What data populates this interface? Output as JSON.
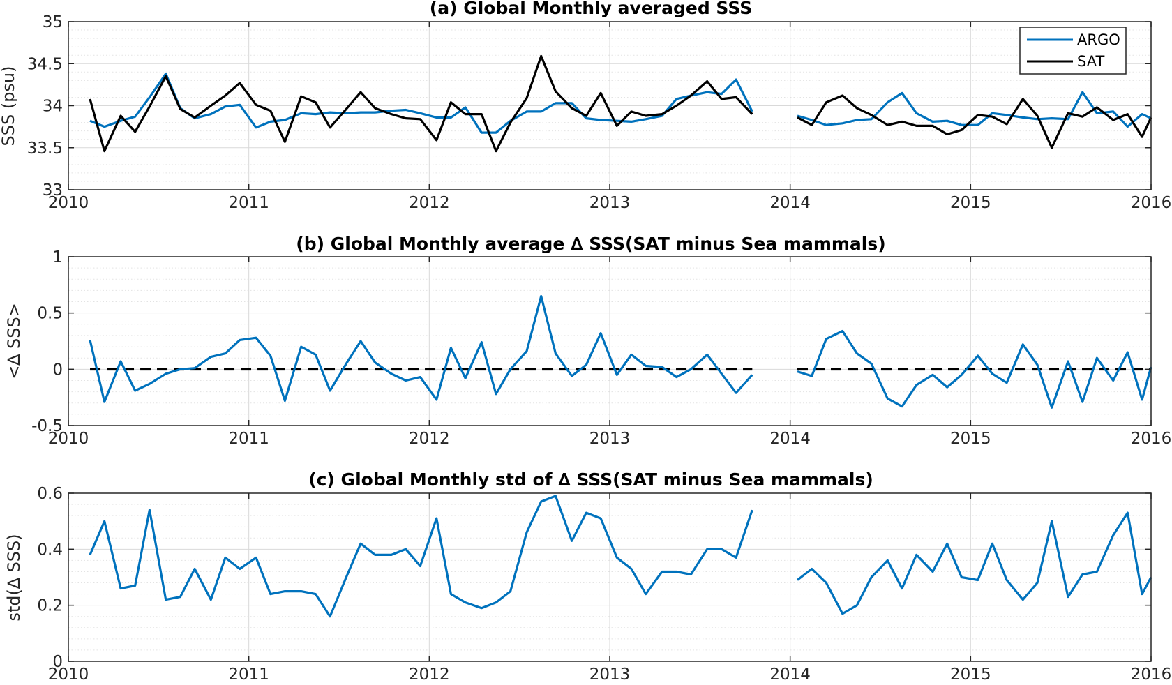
{
  "colors": {
    "argo": "#0072BD",
    "sat": "#000000",
    "grid": "#d9d9d9",
    "axis": "#262626"
  },
  "chart_data": [
    {
      "type": "line",
      "title": "(a) Global Monthly averaged SSS",
      "xlabel": "",
      "ylabel": "SSS (psu)",
      "xlim": [
        2010,
        2016
      ],
      "ylim": [
        33,
        35
      ],
      "xticks": [
        2010,
        2011,
        2012,
        2013,
        2014,
        2015,
        2016
      ],
      "yticks": [
        33,
        33.5,
        34,
        34.5,
        35
      ],
      "ytick_labels": [
        "33",
        "33.5",
        "34",
        "34.5",
        "35"
      ],
      "grid": true,
      "minor_grid": true,
      "legend": "top-right",
      "series": [
        {
          "name": "ARGO",
          "color": "#0072BD",
          "x": [
            2010.12,
            2010.2,
            2010.29,
            2010.37,
            2010.45,
            2010.54,
            2010.62,
            2010.7,
            2010.79,
            2010.87,
            2010.95,
            2011.04,
            2011.12,
            2011.2,
            2011.29,
            2011.37,
            2011.45,
            2011.54,
            2011.62,
            2011.7,
            2011.79,
            2011.87,
            2011.95,
            2012.04,
            2012.12,
            2012.2,
            2012.29,
            2012.37,
            2012.45,
            2012.54,
            2012.62,
            2012.7,
            2012.79,
            2012.87,
            2012.95,
            2013.04,
            2013.12,
            2013.2,
            2013.29,
            2013.37,
            2013.45,
            2013.54,
            2013.62,
            2013.7,
            2013.79,
            null,
            2014.04,
            2014.12,
            2014.2,
            2014.29,
            2014.37,
            2014.45,
            2014.54,
            2014.62,
            2014.7,
            2014.79,
            2014.87,
            2014.95,
            2015.04,
            2015.12,
            2015.2,
            2015.29,
            2015.37,
            2015.45,
            2015.54,
            2015.62,
            2015.7,
            2015.79,
            2015.87,
            2015.95,
            2016.0
          ],
          "y": [
            33.82,
            33.75,
            33.82,
            33.87,
            34.1,
            34.38,
            33.97,
            33.85,
            33.9,
            33.99,
            34.01,
            33.74,
            33.81,
            33.83,
            33.91,
            33.9,
            33.92,
            33.91,
            33.92,
            33.92,
            33.94,
            33.95,
            33.91,
            33.86,
            33.86,
            33.98,
            33.68,
            33.68,
            33.82,
            33.93,
            33.93,
            34.03,
            34.03,
            33.85,
            33.83,
            33.82,
            33.81,
            33.84,
            33.88,
            34.08,
            34.12,
            34.16,
            34.14,
            34.31,
            33.93,
            null,
            33.88,
            33.83,
            33.77,
            33.79,
            33.83,
            33.84,
            34.04,
            34.15,
            33.91,
            33.81,
            33.82,
            33.77,
            33.77,
            33.91,
            33.89,
            33.86,
            33.84,
            33.85,
            33.84,
            34.16,
            33.91,
            33.93,
            33.75,
            33.9,
            33.85
          ]
        },
        {
          "name": "SAT",
          "color": "#000000",
          "x": [
            2010.12,
            2010.2,
            2010.29,
            2010.37,
            2010.45,
            2010.54,
            2010.62,
            2010.7,
            2010.79,
            2010.87,
            2010.95,
            2011.04,
            2011.12,
            2011.2,
            2011.29,
            2011.37,
            2011.45,
            2011.54,
            2011.62,
            2011.7,
            2011.79,
            2011.87,
            2011.95,
            2012.04,
            2012.12,
            2012.2,
            2012.29,
            2012.37,
            2012.45,
            2012.54,
            2012.62,
            2012.7,
            2012.79,
            2012.87,
            2012.95,
            2013.04,
            2013.12,
            2013.2,
            2013.29,
            2013.37,
            2013.45,
            2013.54,
            2013.62,
            2013.7,
            2013.79,
            null,
            2014.04,
            2014.12,
            2014.2,
            2014.29,
            2014.37,
            2014.45,
            2014.54,
            2014.62,
            2014.7,
            2014.79,
            2014.87,
            2014.95,
            2015.04,
            2015.12,
            2015.2,
            2015.29,
            2015.37,
            2015.45,
            2015.54,
            2015.62,
            2015.7,
            2015.79,
            2015.87,
            2015.95,
            2016.0
          ],
          "y": [
            34.08,
            33.46,
            33.88,
            33.69,
            33.99,
            34.35,
            33.96,
            33.86,
            34.0,
            34.12,
            34.27,
            34.01,
            33.94,
            33.57,
            34.11,
            34.04,
            33.74,
            33.96,
            34.16,
            33.97,
            33.9,
            33.85,
            33.84,
            33.59,
            34.04,
            33.9,
            33.9,
            33.46,
            33.8,
            34.09,
            34.59,
            34.17,
            33.97,
            33.88,
            34.15,
            33.76,
            33.93,
            33.88,
            33.9,
            34.0,
            34.12,
            34.29,
            34.08,
            34.1,
            33.9,
            null,
            33.86,
            33.77,
            34.04,
            34.12,
            33.97,
            33.89,
            33.77,
            33.81,
            33.76,
            33.76,
            33.66,
            33.71,
            33.89,
            33.87,
            33.78,
            34.08,
            33.88,
            33.5,
            33.91,
            33.87,
            33.98,
            33.83,
            33.9,
            33.63,
            33.86
          ]
        }
      ]
    },
    {
      "type": "line",
      "title": "(b) Global Monthly average ∆ SSS(SAT minus Sea mammals)",
      "xlabel": "",
      "ylabel": "<∆ SSS>",
      "xlim": [
        2010,
        2016
      ],
      "ylim": [
        -0.5,
        1
      ],
      "xticks": [
        2010,
        2011,
        2012,
        2013,
        2014,
        2015,
        2016
      ],
      "yticks": [
        -0.5,
        0,
        0.5,
        1
      ],
      "ytick_labels": [
        "-0.5",
        "0",
        "0.5",
        "1"
      ],
      "grid": true,
      "minor_grid": true,
      "reference_line": {
        "y": 0,
        "style": "dashed",
        "segments": [
          [
            2010.12,
            2013.79
          ],
          [
            2014.04,
            2016.0
          ]
        ]
      },
      "series": [
        {
          "color": "#0072BD",
          "x": [
            2010.12,
            2010.2,
            2010.29,
            2010.37,
            2010.45,
            2010.54,
            2010.62,
            2010.7,
            2010.79,
            2010.87,
            2010.95,
            2011.04,
            2011.12,
            2011.2,
            2011.29,
            2011.37,
            2011.45,
            2011.54,
            2011.62,
            2011.7,
            2011.79,
            2011.87,
            2011.95,
            2012.04,
            2012.12,
            2012.2,
            2012.29,
            2012.37,
            2012.45,
            2012.54,
            2012.62,
            2012.7,
            2012.79,
            2012.87,
            2012.95,
            2013.04,
            2013.12,
            2013.2,
            2013.29,
            2013.37,
            2013.45,
            2013.54,
            2013.62,
            2013.7,
            2013.79,
            null,
            2014.04,
            2014.12,
            2014.2,
            2014.29,
            2014.37,
            2014.45,
            2014.54,
            2014.62,
            2014.7,
            2014.79,
            2014.87,
            2014.95,
            2015.04,
            2015.12,
            2015.2,
            2015.29,
            2015.37,
            2015.45,
            2015.54,
            2015.62,
            2015.7,
            2015.79,
            2015.87,
            2015.95,
            2016.0
          ],
          "y": [
            0.26,
            -0.29,
            0.07,
            -0.19,
            -0.13,
            -0.04,
            0.0,
            0.01,
            0.11,
            0.14,
            0.26,
            0.28,
            0.12,
            -0.28,
            0.2,
            0.13,
            -0.19,
            0.05,
            0.25,
            0.06,
            -0.04,
            -0.1,
            -0.07,
            -0.27,
            0.19,
            -0.08,
            0.24,
            -0.22,
            0.0,
            0.16,
            0.65,
            0.14,
            -0.06,
            0.04,
            0.32,
            -0.05,
            0.13,
            0.03,
            0.02,
            -0.07,
            0.0,
            0.13,
            -0.04,
            -0.21,
            -0.05,
            null,
            -0.02,
            -0.06,
            0.27,
            0.34,
            0.14,
            0.05,
            -0.26,
            -0.33,
            -0.14,
            -0.05,
            -0.16,
            -0.05,
            0.12,
            -0.04,
            -0.12,
            0.22,
            0.04,
            -0.34,
            0.07,
            -0.29,
            0.1,
            -0.1,
            0.15,
            -0.27,
            0.02
          ]
        }
      ]
    },
    {
      "type": "line",
      "title": "(c) Global Monthly std of ∆ SSS(SAT minus Sea mammals)",
      "xlabel": "",
      "ylabel": "std(∆ SSS)",
      "xlim": [
        2010,
        2016
      ],
      "ylim": [
        0,
        0.6
      ],
      "xticks": [
        2010,
        2011,
        2012,
        2013,
        2014,
        2015,
        2016
      ],
      "yticks": [
        0,
        0.2,
        0.4,
        0.6
      ],
      "ytick_labels": [
        "0",
        "0.2",
        "0.4",
        "0.6"
      ],
      "grid": true,
      "minor_grid": true,
      "series": [
        {
          "color": "#0072BD",
          "x": [
            2010.12,
            2010.2,
            2010.29,
            2010.37,
            2010.45,
            2010.54,
            2010.62,
            2010.7,
            2010.79,
            2010.87,
            2010.95,
            2011.04,
            2011.12,
            2011.2,
            2011.29,
            2011.37,
            2011.45,
            2011.54,
            2011.62,
            2011.7,
            2011.79,
            2011.87,
            2011.95,
            2012.04,
            2012.12,
            2012.2,
            2012.29,
            2012.37,
            2012.45,
            2012.54,
            2012.62,
            2012.7,
            2012.79,
            2012.87,
            2012.95,
            2013.04,
            2013.12,
            2013.2,
            2013.29,
            2013.37,
            2013.45,
            2013.54,
            2013.62,
            2013.7,
            2013.79,
            null,
            2014.04,
            2014.12,
            2014.2,
            2014.29,
            2014.37,
            2014.45,
            2014.54,
            2014.62,
            2014.7,
            2014.79,
            2014.87,
            2014.95,
            2015.04,
            2015.12,
            2015.2,
            2015.29,
            2015.37,
            2015.45,
            2015.54,
            2015.62,
            2015.7,
            2015.79,
            2015.87,
            2015.95,
            2016.0
          ],
          "y": [
            0.38,
            0.5,
            0.26,
            0.27,
            0.54,
            0.22,
            0.23,
            0.33,
            0.22,
            0.37,
            0.33,
            0.37,
            0.24,
            0.25,
            0.25,
            0.24,
            0.16,
            0.3,
            0.42,
            0.38,
            0.38,
            0.4,
            0.34,
            0.51,
            0.24,
            0.21,
            0.19,
            0.21,
            0.25,
            0.46,
            0.57,
            0.59,
            0.43,
            0.53,
            0.51,
            0.37,
            0.33,
            0.24,
            0.32,
            0.32,
            0.31,
            0.4,
            0.4,
            0.37,
            0.54,
            null,
            0.29,
            0.33,
            0.28,
            0.17,
            0.2,
            0.3,
            0.36,
            0.26,
            0.38,
            0.32,
            0.42,
            0.3,
            0.29,
            0.42,
            0.29,
            0.22,
            0.28,
            0.5,
            0.23,
            0.31,
            0.32,
            0.45,
            0.53,
            0.24,
            0.3
          ]
        }
      ]
    }
  ]
}
